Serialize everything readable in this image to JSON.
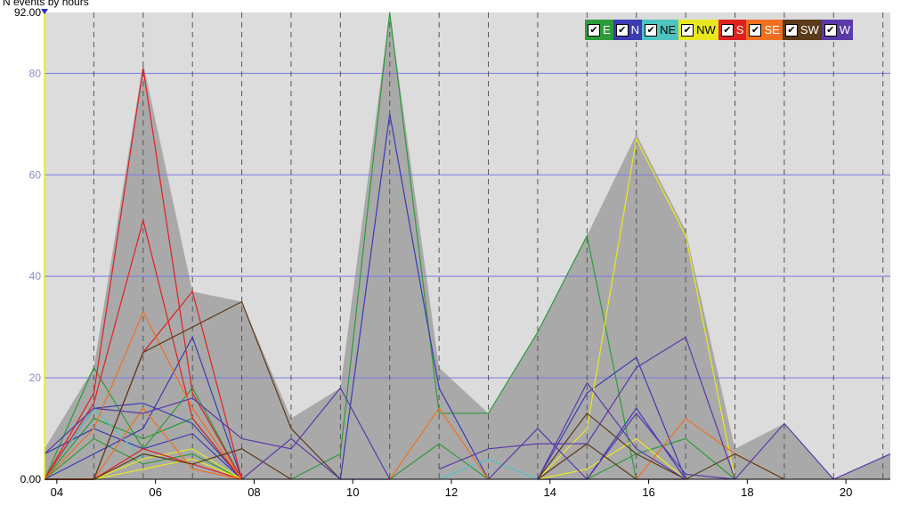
{
  "chart_data": {
    "type": "line",
    "title": "N events by hours",
    "xlabel": "",
    "ylabel": "",
    "xlim": [
      3.75,
      20.9
    ],
    "ylim": [
      0,
      92
    ],
    "x_ticks": [
      {
        "v": 4,
        "label": "04"
      },
      {
        "v": 6,
        "label": "06"
      },
      {
        "v": 8,
        "label": "08"
      },
      {
        "v": 10,
        "label": "10"
      },
      {
        "v": 12,
        "label": "12"
      },
      {
        "v": 14,
        "label": "14"
      },
      {
        "v": 16,
        "label": "16"
      },
      {
        "v": 18,
        "label": "18"
      },
      {
        "v": 20,
        "label": "20"
      }
    ],
    "y_ticks": [
      {
        "v": 0,
        "label": "0.00"
      },
      {
        "v": 20,
        "label": "20"
      },
      {
        "v": 40,
        "label": "40"
      },
      {
        "v": 60,
        "label": "60"
      },
      {
        "v": 80,
        "label": "80"
      },
      {
        "v": 92,
        "label": "92.00"
      }
    ],
    "vertical_gridlines": [
      4.75,
      5.75,
      6.75,
      7.75,
      8.75,
      9.75,
      10.75,
      11.75,
      12.75,
      13.75,
      14.75,
      15.75,
      16.75,
      17.75,
      18.75,
      19.75,
      20.75
    ],
    "grid": true,
    "legend_position": "top-right",
    "area": {
      "color": "#a9a9a9",
      "points": [
        [
          3.75,
          6
        ],
        [
          4.75,
          22
        ],
        [
          5.75,
          82
        ],
        [
          6.75,
          37
        ],
        [
          7.75,
          35
        ],
        [
          8.75,
          12
        ],
        [
          9.75,
          18
        ],
        [
          10.75,
          94
        ],
        [
          11.75,
          22
        ],
        [
          12.75,
          13
        ],
        [
          13.75,
          29
        ],
        [
          14.75,
          48
        ],
        [
          15.75,
          68
        ],
        [
          16.75,
          49
        ],
        [
          17.75,
          6
        ],
        [
          18.75,
          11
        ],
        [
          19.75,
          0
        ],
        [
          20.9,
          5
        ]
      ]
    },
    "series": [
      {
        "name": "E",
        "color": "#2e9b3a",
        "lines": [
          [
            [
              3.75,
              0
            ],
            [
              4.75,
              22
            ],
            [
              5.75,
              6
            ],
            [
              6.75,
              18
            ],
            [
              7.75,
              0
            ]
          ],
          [
            [
              3.75,
              0
            ],
            [
              4.75,
              8
            ],
            [
              5.75,
              3
            ],
            [
              6.75,
              5
            ],
            [
              7.75,
              0
            ]
          ],
          [
            [
              3.75,
              0
            ],
            [
              4.75,
              12
            ],
            [
              5.75,
              8
            ],
            [
              6.75,
              12
            ],
            [
              7.75,
              0
            ]
          ],
          [
            [
              8.75,
              0
            ],
            [
              9.75,
              5
            ],
            [
              10.75,
              94
            ],
            [
              11.75,
              13
            ],
            [
              12.75,
              13
            ],
            [
              13.75,
              29
            ],
            [
              14.75,
              48
            ],
            [
              15.75,
              0
            ]
          ],
          [
            [
              10.75,
              0
            ],
            [
              11.75,
              7
            ],
            [
              12.75,
              0
            ]
          ],
          [
            [
              14.75,
              0
            ],
            [
              15.75,
              5
            ],
            [
              16.75,
              8
            ],
            [
              17.75,
              0
            ]
          ]
        ]
      },
      {
        "name": "N",
        "color": "#3b3bb3",
        "lines": [
          [
            [
              3.75,
              0
            ],
            [
              4.75,
              14
            ],
            [
              5.75,
              15
            ],
            [
              6.75,
              11
            ],
            [
              7.75,
              0
            ]
          ],
          [
            [
              3.75,
              0
            ],
            [
              4.75,
              5
            ],
            [
              5.75,
              10
            ],
            [
              6.75,
              28
            ],
            [
              7.75,
              0
            ]
          ],
          [
            [
              3.75,
              5
            ],
            [
              4.75,
              10
            ],
            [
              5.75,
              6
            ],
            [
              6.75,
              9
            ],
            [
              7.75,
              0
            ]
          ],
          [
            [
              9.75,
              0
            ],
            [
              10.75,
              72
            ],
            [
              11.75,
              18
            ],
            [
              12.75,
              0
            ]
          ],
          [
            [
              13.75,
              0
            ],
            [
              14.75,
              17
            ],
            [
              15.75,
              24
            ],
            [
              16.75,
              0
            ]
          ],
          [
            [
              13.75,
              0
            ],
            [
              14.75,
              0
            ],
            [
              15.75,
              14
            ],
            [
              16.75,
              0
            ]
          ]
        ]
      },
      {
        "name": "NE",
        "color": "#4dc4c0",
        "lines": [
          [
            [
              3.75,
              0
            ],
            [
              4.75,
              14
            ],
            [
              5.75,
              4
            ],
            [
              6.75,
              6
            ],
            [
              7.75,
              0
            ]
          ],
          [
            [
              11.75,
              0
            ],
            [
              12.75,
              4
            ],
            [
              13.75,
              0
            ]
          ]
        ]
      },
      {
        "name": "NW",
        "color": "#e8e820",
        "lines": [
          [
            [
              3.75,
              0
            ],
            [
              4.75,
              0
            ],
            [
              5.75,
              4
            ],
            [
              6.75,
              6
            ],
            [
              7.75,
              0
            ]
          ],
          [
            [
              3.75,
              0
            ],
            [
              4.75,
              0
            ],
            [
              5.75,
              2
            ],
            [
              6.75,
              4
            ],
            [
              7.75,
              0
            ]
          ],
          [
            [
              13.75,
              0
            ],
            [
              14.75,
              10
            ],
            [
              15.75,
              67
            ],
            [
              16.75,
              48
            ],
            [
              17.75,
              0
            ]
          ],
          [
            [
              13.75,
              0
            ],
            [
              14.75,
              2
            ],
            [
              15.75,
              8
            ],
            [
              16.75,
              0
            ]
          ]
        ]
      },
      {
        "name": "S",
        "color": "#e02020",
        "lines": [
          [
            [
              3.75,
              0
            ],
            [
              4.75,
              17
            ],
            [
              5.75,
              81
            ],
            [
              6.75,
              17
            ],
            [
              7.75,
              0
            ]
          ],
          [
            [
              3.75,
              0
            ],
            [
              4.75,
              15
            ],
            [
              5.75,
              51
            ],
            [
              6.75,
              12
            ],
            [
              7.75,
              0
            ]
          ],
          [
            [
              3.75,
              0
            ],
            [
              4.75,
              0
            ],
            [
              5.75,
              25
            ],
            [
              6.75,
              37
            ],
            [
              7.75,
              0
            ]
          ],
          [
            [
              3.75,
              0
            ],
            [
              4.75,
              0
            ],
            [
              5.75,
              6
            ],
            [
              6.75,
              3
            ],
            [
              7.75,
              0
            ]
          ]
        ]
      },
      {
        "name": "SE",
        "color": "#f07020",
        "lines": [
          [
            [
              3.75,
              0
            ],
            [
              4.75,
              10
            ],
            [
              5.75,
              33
            ],
            [
              6.75,
              14
            ],
            [
              7.75,
              0
            ]
          ],
          [
            [
              3.75,
              0
            ],
            [
              4.75,
              0
            ],
            [
              5.75,
              14
            ],
            [
              6.75,
              2
            ],
            [
              7.75,
              0
            ]
          ],
          [
            [
              10.75,
              0
            ],
            [
              11.75,
              14
            ],
            [
              12.75,
              0
            ]
          ],
          [
            [
              15.75,
              0
            ],
            [
              16.75,
              12
            ],
            [
              17.75,
              5
            ],
            [
              18.75,
              0
            ]
          ]
        ]
      },
      {
        "name": "SW",
        "color": "#5a3a1a",
        "lines": [
          [
            [
              3.75,
              0
            ],
            [
              4.75,
              0
            ],
            [
              5.75,
              25
            ],
            [
              6.75,
              30
            ],
            [
              7.75,
              35
            ],
            [
              8.75,
              10
            ],
            [
              9.75,
              0
            ]
          ],
          [
            [
              3.75,
              0
            ],
            [
              4.75,
              0
            ],
            [
              5.75,
              5
            ],
            [
              6.75,
              3
            ],
            [
              7.75,
              6
            ],
            [
              8.75,
              0
            ]
          ],
          [
            [
              13.75,
              0
            ],
            [
              14.75,
              13
            ],
            [
              15.75,
              5
            ],
            [
              16.75,
              0
            ],
            [
              17.75,
              5
            ],
            [
              18.75,
              0
            ]
          ],
          [
            [
              13.75,
              0
            ],
            [
              14.75,
              7
            ],
            [
              15.75,
              0
            ],
            [
              16.75,
              0
            ]
          ]
        ]
      },
      {
        "name": "W",
        "color": "#5a3aa8",
        "lines": [
          [
            [
              3.75,
              5
            ],
            [
              4.75,
              14
            ],
            [
              5.75,
              13
            ],
            [
              6.75,
              16
            ],
            [
              7.75,
              8
            ],
            [
              8.75,
              6
            ],
            [
              9.75,
              18
            ],
            [
              10.75,
              0
            ]
          ],
          [
            [
              7.75,
              0
            ],
            [
              8.75,
              8
            ],
            [
              9.75,
              0
            ],
            [
              10.75,
              0
            ]
          ],
          [
            [
              11.75,
              2
            ],
            [
              12.75,
              6
            ],
            [
              13.75,
              7
            ],
            [
              14.75,
              7
            ],
            [
              15.75,
              22
            ],
            [
              16.75,
              28
            ],
            [
              17.75,
              0
            ]
          ],
          [
            [
              12.75,
              0
            ],
            [
              13.75,
              10
            ],
            [
              14.75,
              0
            ],
            [
              15.75,
              13
            ],
            [
              16.75,
              1
            ],
            [
              17.75,
              0
            ]
          ],
          [
            [
              17.75,
              0
            ],
            [
              18.75,
              11
            ],
            [
              19.75,
              0
            ],
            [
              20.9,
              5
            ]
          ],
          [
            [
              13.75,
              0
            ],
            [
              14.75,
              19
            ],
            [
              15.75,
              6
            ],
            [
              16.75,
              0
            ]
          ]
        ]
      }
    ]
  }
}
